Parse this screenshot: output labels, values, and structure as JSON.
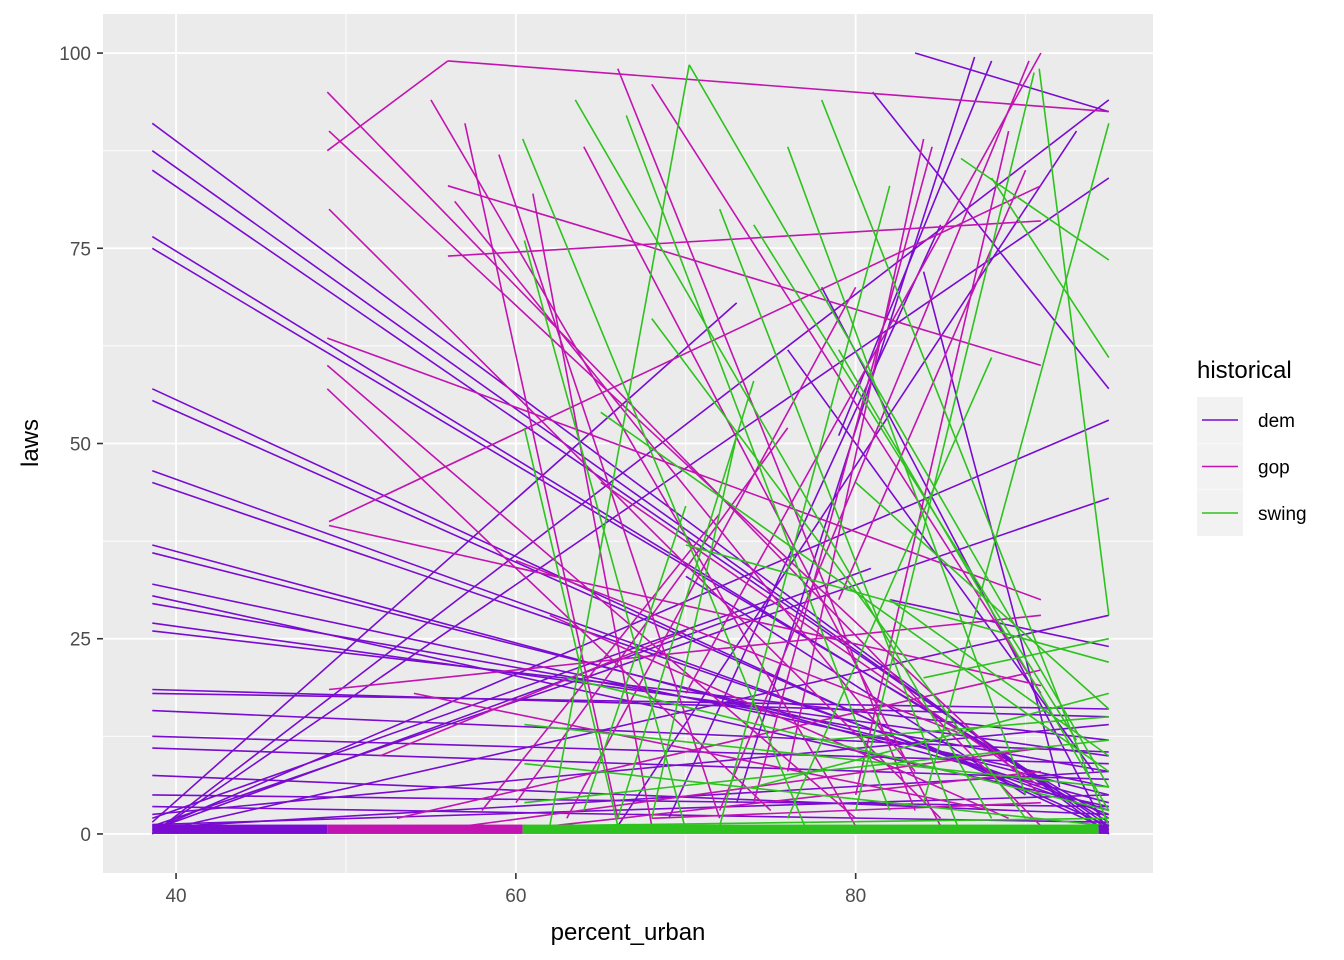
{
  "chart_data": {
    "type": "line",
    "title": "",
    "xlabel": "percent_urban",
    "ylabel": "laws",
    "xlim": [
      35.7,
      97.5
    ],
    "ylim": [
      -5,
      105
    ],
    "x_ticks": [
      40,
      60,
      80
    ],
    "y_ticks": [
      0,
      25,
      50,
      75,
      100
    ],
    "grid": true,
    "background": "#EBEBEB",
    "legend": {
      "title": "historical",
      "position": "right",
      "entries": [
        {
          "name": "dem",
          "color": "#7A0BD1"
        },
        {
          "name": "gop",
          "color": "#C214B0"
        },
        {
          "name": "swing",
          "color": "#2EC21E"
        }
      ]
    },
    "series": [
      {
        "name": "dem",
        "color": "#7A0BD1",
        "segments": [
          [
            [
              38.6,
              91
            ],
            [
              94.9,
              0
            ]
          ],
          [
            [
              38.6,
              87.5
            ],
            [
              94.9,
              0.5
            ]
          ],
          [
            [
              38.6,
              85
            ],
            [
              94.9,
              1
            ]
          ],
          [
            [
              38.6,
              76.5
            ],
            [
              94.9,
              1.5
            ]
          ],
          [
            [
              38.6,
              75
            ],
            [
              94.9,
              2
            ]
          ],
          [
            [
              38.6,
              57
            ],
            [
              94.9,
              0.5
            ]
          ],
          [
            [
              38.6,
              55.5
            ],
            [
              94.9,
              1
            ]
          ],
          [
            [
              38.6,
              46.5
            ],
            [
              94.9,
              2.5
            ]
          ],
          [
            [
              38.6,
              45
            ],
            [
              94.9,
              3
            ]
          ],
          [
            [
              38.6,
              37
            ],
            [
              94.9,
              4
            ]
          ],
          [
            [
              38.6,
              36
            ],
            [
              94.9,
              5
            ]
          ],
          [
            [
              38.6,
              32
            ],
            [
              94.9,
              6
            ]
          ],
          [
            [
              38.6,
              30.5
            ],
            [
              94.9,
              3.5
            ]
          ],
          [
            [
              38.6,
              29.5
            ],
            [
              94.9,
              8
            ]
          ],
          [
            [
              38.6,
              27
            ],
            [
              94.9,
              10
            ]
          ],
          [
            [
              38.6,
              26
            ],
            [
              94.9,
              12
            ]
          ],
          [
            [
              38.6,
              18.5
            ],
            [
              94.9,
              15
            ]
          ],
          [
            [
              38.6,
              18
            ],
            [
              94.9,
              16
            ]
          ],
          [
            [
              38.6,
              15.8
            ],
            [
              94.9,
              10.5
            ]
          ],
          [
            [
              38.6,
              12.5
            ],
            [
              94.9,
              9
            ]
          ],
          [
            [
              38.6,
              11
            ],
            [
              94.9,
              7
            ]
          ],
          [
            [
              38.6,
              7.5
            ],
            [
              94.9,
              2.5
            ]
          ],
          [
            [
              38.6,
              5
            ],
            [
              94.9,
              3.5
            ]
          ],
          [
            [
              38.6,
              3.5
            ],
            [
              94.9,
              1.5
            ]
          ],
          [
            [
              38.6,
              0
            ],
            [
              94.9,
              94
            ]
          ],
          [
            [
              38.6,
              0
            ],
            [
              94.9,
              84
            ]
          ],
          [
            [
              38.6,
              0.5
            ],
            [
              94.9,
              53
            ]
          ],
          [
            [
              38.6,
              1
            ],
            [
              94.9,
              43
            ]
          ],
          [
            [
              38.6,
              0.5
            ],
            [
              80.9,
              34
            ]
          ],
          [
            [
              38.6,
              1.5
            ],
            [
              73,
              68
            ]
          ],
          [
            [
              38.6,
              2
            ],
            [
              75,
              30
            ]
          ],
          [
            [
              38.6,
              0.2
            ],
            [
              94.9,
              28
            ]
          ],
          [
            [
              38.6,
              2.5
            ],
            [
              94.9,
              14
            ]
          ],
          [
            [
              38.6,
              0.8
            ],
            [
              94.9,
              8
            ]
          ],
          [
            [
              38.6,
              1.2
            ],
            [
              94.9,
              5
            ]
          ],
          [
            [
              83.5,
              100
            ],
            [
              94.9,
              92.5
            ]
          ],
          [
            [
              81,
              95
            ],
            [
              94.9,
              57
            ]
          ],
          [
            [
              79,
              51
            ],
            [
              88,
              99
            ]
          ],
          [
            [
              73,
              4
            ],
            [
              87,
              99.5
            ]
          ],
          [
            [
              69,
              2
            ],
            [
              85,
              78
            ]
          ],
          [
            [
              66,
              1
            ],
            [
              93,
              90
            ]
          ],
          [
            [
              78,
              70
            ],
            [
              94.9,
              0
            ]
          ],
          [
            [
              76,
              62
            ],
            [
              94,
              8
            ]
          ],
          [
            [
              70,
              33
            ],
            [
              90,
              5
            ]
          ],
          [
            [
              82,
              30
            ],
            [
              94.9,
              24
            ]
          ],
          [
            [
              84,
              72
            ],
            [
              92,
              6
            ]
          ]
        ]
      },
      {
        "name": "gop",
        "color": "#C214B0",
        "segments": [
          [
            [
              48.9,
              87.5
            ],
            [
              56,
              99
            ]
          ],
          [
            [
              56,
              99
            ],
            [
              94.9,
              92.5
            ]
          ],
          [
            [
              48.9,
              95
            ],
            [
              90.9,
              1
            ]
          ],
          [
            [
              49,
              90
            ],
            [
              90.9,
              5
            ]
          ],
          [
            [
              49,
              80
            ],
            [
              85,
              2
            ]
          ],
          [
            [
              48.9,
              63.5
            ],
            [
              90.9,
              30
            ]
          ],
          [
            [
              48.9,
              60
            ],
            [
              80,
              2
            ]
          ],
          [
            [
              48.9,
              57
            ],
            [
              75,
              3
            ]
          ],
          [
            [
              49,
              40
            ],
            [
              90.9,
              83
            ]
          ],
          [
            [
              49,
              39.5
            ],
            [
              90.9,
              19
            ]
          ],
          [
            [
              49,
              18.5
            ],
            [
              90.9,
              28
            ]
          ],
          [
            [
              56,
              83
            ],
            [
              90.9,
              60
            ]
          ],
          [
            [
              56.4,
              81
            ],
            [
              83.5,
              8
            ]
          ],
          [
            [
              56,
              74
            ],
            [
              90.9,
              78.5
            ]
          ],
          [
            [
              55,
              94
            ],
            [
              80,
              1
            ]
          ],
          [
            [
              61,
              82
            ],
            [
              68,
              1
            ]
          ],
          [
            [
              64,
              88
            ],
            [
              85,
              1
            ]
          ],
          [
            [
              66,
              98
            ],
            [
              83.5,
              3
            ]
          ],
          [
            [
              68,
              96
            ],
            [
              90.9,
              18
            ]
          ],
          [
            [
              70,
              18
            ],
            [
              90.9,
              100
            ]
          ],
          [
            [
              72,
              3
            ],
            [
              90.2,
              99
            ]
          ],
          [
            [
              74,
              4
            ],
            [
              84.5,
              88
            ]
          ],
          [
            [
              76,
              8
            ],
            [
              84,
              89
            ]
          ],
          [
            [
              80,
              5
            ],
            [
              89,
              90
            ]
          ],
          [
            [
              63,
              2
            ],
            [
              80,
              70
            ]
          ],
          [
            [
              60,
              4
            ],
            [
              76,
              52
            ]
          ],
          [
            [
              58,
              3
            ],
            [
              72,
              41
            ]
          ],
          [
            [
              52,
              10
            ],
            [
              70,
              26
            ]
          ],
          [
            [
              54,
              18
            ],
            [
              88,
              3
            ]
          ],
          [
            [
              60,
              35
            ],
            [
              86,
              13
            ]
          ],
          [
            [
              65,
              45
            ],
            [
              90.9,
              6
            ]
          ],
          [
            [
              53,
              2
            ],
            [
              90.9,
              21
            ]
          ],
          [
            [
              57,
              1
            ],
            [
              90.9,
              11
            ]
          ],
          [
            [
              62,
              1
            ],
            [
              90.9,
              8
            ]
          ],
          [
            [
              68,
              2
            ],
            [
              90.9,
              4
            ]
          ],
          [
            [
              59,
              87
            ],
            [
              72,
              2
            ]
          ],
          [
            [
              57,
              91
            ],
            [
              66,
              2
            ]
          ],
          [
            [
              62,
              28
            ],
            [
              89,
              2
            ]
          ],
          [
            [
              79,
              30
            ],
            [
              90,
              85
            ]
          ]
        ]
      },
      {
        "name": "swing",
        "color": "#2EC21E",
        "segments": [
          [
            [
              60.4,
              89
            ],
            [
              77,
              1
            ]
          ],
          [
            [
              60.5,
              76
            ],
            [
              70,
              0.5
            ]
          ],
          [
            [
              60.5,
              52
            ],
            [
              66,
              1
            ]
          ],
          [
            [
              63.5,
              94
            ],
            [
              88,
              2
            ]
          ],
          [
            [
              66.5,
              92
            ],
            [
              82,
              3
            ]
          ],
          [
            [
              70.2,
              98.5
            ],
            [
              94.9,
              6
            ]
          ],
          [
            [
              72,
              80
            ],
            [
              86,
              1
            ]
          ],
          [
            [
              74,
              78
            ],
            [
              93,
              12
            ]
          ],
          [
            [
              76,
              88
            ],
            [
              90,
              5
            ]
          ],
          [
            [
              78,
              94
            ],
            [
              94.9,
              1
            ]
          ],
          [
            [
              79,
              62
            ],
            [
              94.9,
              3
            ]
          ],
          [
            [
              80,
              45
            ],
            [
              94.9,
              16
            ]
          ],
          [
            [
              62,
              1
            ],
            [
              70.2,
              98.5
            ]
          ],
          [
            [
              64,
              3
            ],
            [
              70,
              42
            ]
          ],
          [
            [
              66,
              2
            ],
            [
              74,
              58
            ]
          ],
          [
            [
              68,
              2
            ],
            [
              73,
              51
            ]
          ],
          [
            [
              72,
              1
            ],
            [
              82,
              83
            ]
          ],
          [
            [
              76,
              2
            ],
            [
              88,
              61
            ]
          ],
          [
            [
              80,
              3
            ],
            [
              90.5,
              97.5
            ]
          ],
          [
            [
              84,
              4
            ],
            [
              94.9,
              91
            ]
          ],
          [
            [
              86.2,
              86.5
            ],
            [
              94.9,
              73.5
            ]
          ],
          [
            [
              88,
              84
            ],
            [
              94.9,
              61
            ]
          ],
          [
            [
              90.8,
              98
            ],
            [
              94.9,
              28
            ]
          ],
          [
            [
              60.5,
              9
            ],
            [
              94.9,
              1
            ]
          ],
          [
            [
              60.5,
              4
            ],
            [
              94.9,
              12
            ]
          ],
          [
            [
              60.5,
              14
            ],
            [
              94.9,
              6
            ]
          ],
          [
            [
              63,
              20
            ],
            [
              94.9,
              3
            ]
          ],
          [
            [
              60.5,
              1
            ],
            [
              94.9,
              2
            ]
          ],
          [
            [
              65,
              54
            ],
            [
              94.9,
              8
            ]
          ],
          [
            [
              68,
              66
            ],
            [
              90,
              2
            ]
          ],
          [
            [
              70,
              37
            ],
            [
              94.9,
              22
            ]
          ],
          [
            [
              82,
              30
            ],
            [
              94.9,
              10
            ]
          ],
          [
            [
              84,
              20
            ],
            [
              94.9,
              25
            ]
          ],
          [
            [
              74,
              6
            ],
            [
              94.9,
              18
            ]
          ],
          [
            [
              78,
              12
            ],
            [
              94.9,
              15
            ]
          ]
        ]
      }
    ],
    "baseline_bars": [
      {
        "series": "dem",
        "x": [
          38.6,
          48.9
        ]
      },
      {
        "series": "gop",
        "x": [
          48.9,
          60.4
        ]
      },
      {
        "series": "swing",
        "x": [
          60.4,
          94.3
        ]
      },
      {
        "series": "dem",
        "x": [
          94.3,
          94.9
        ]
      }
    ]
  }
}
